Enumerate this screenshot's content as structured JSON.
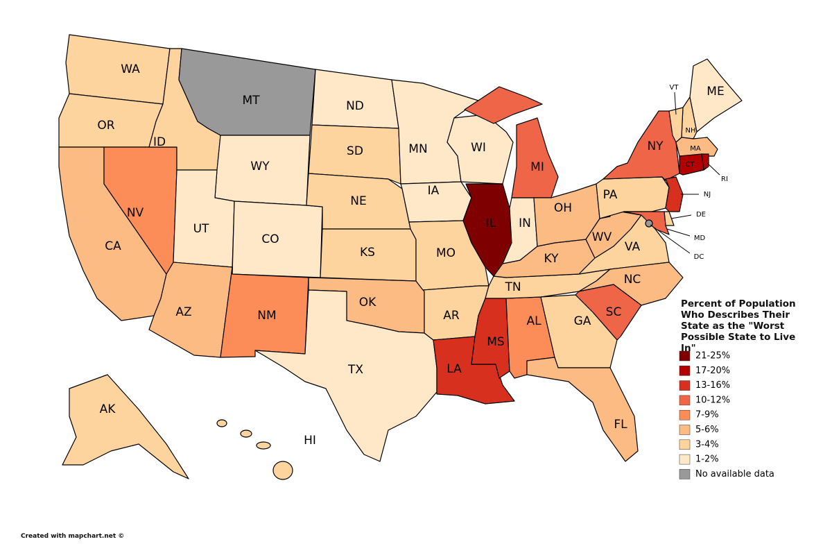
{
  "map": {
    "legend": {
      "title": "Percent of Population Who Describes Their State as the \"Worst Possible State to Live In\"",
      "items": [
        {
          "label": "21-25%",
          "color": "#7f0000"
        },
        {
          "label": "17-20%",
          "color": "#b30000"
        },
        {
          "label": "13-16%",
          "color": "#d7301f"
        },
        {
          "label": "10-12%",
          "color": "#ef6548"
        },
        {
          "label": "7-9%",
          "color": "#fc8d59"
        },
        {
          "label": "5-6%",
          "color": "#fdbb84"
        },
        {
          "label": "3-4%",
          "color": "#fdd49e"
        },
        {
          "label": "1-2%",
          "color": "#fee8c8"
        },
        {
          "label": "No available data",
          "color": "#999999"
        }
      ]
    },
    "states": [
      {
        "label": "WA",
        "bin": 6
      },
      {
        "label": "OR",
        "bin": 6
      },
      {
        "label": "CA",
        "bin": 5
      },
      {
        "label": "NV",
        "bin": 4
      },
      {
        "label": "ID",
        "bin": 6
      },
      {
        "label": "MT",
        "bin": 8
      },
      {
        "label": "WY",
        "bin": 7
      },
      {
        "label": "UT",
        "bin": 7
      },
      {
        "label": "CO",
        "bin": 7
      },
      {
        "label": "AZ",
        "bin": 5
      },
      {
        "label": "NM",
        "bin": 4
      },
      {
        "label": "ND",
        "bin": 7
      },
      {
        "label": "SD",
        "bin": 6
      },
      {
        "label": "NE",
        "bin": 6
      },
      {
        "label": "KS",
        "bin": 6
      },
      {
        "label": "OK",
        "bin": 5
      },
      {
        "label": "TX",
        "bin": 7
      },
      {
        "label": "MN",
        "bin": 7
      },
      {
        "label": "IA",
        "bin": 7
      },
      {
        "label": "MO",
        "bin": 6
      },
      {
        "label": "AR",
        "bin": 6
      },
      {
        "label": "LA",
        "bin": 2
      },
      {
        "label": "WI",
        "bin": 7
      },
      {
        "label": "IL",
        "bin": 0
      },
      {
        "label": "MS",
        "bin": 2
      },
      {
        "label": "AL",
        "bin": 4
      },
      {
        "label": "TN",
        "bin": 6
      },
      {
        "label": "KY",
        "bin": 5
      },
      {
        "label": "IN",
        "bin": 7
      },
      {
        "label": "MI",
        "bin": 3
      },
      {
        "label": "OH",
        "bin": 5
      },
      {
        "label": "WV",
        "bin": 5
      },
      {
        "label": "VA",
        "bin": 6
      },
      {
        "label": "NC",
        "bin": 5
      },
      {
        "label": "SC",
        "bin": 3
      },
      {
        "label": "GA",
        "bin": 6
      },
      {
        "label": "FL",
        "bin": 5
      },
      {
        "label": "PA",
        "bin": 6
      },
      {
        "label": "NY",
        "bin": 3
      },
      {
        "label": "ME",
        "bin": 7
      },
      {
        "label": "NH",
        "bin": 6
      },
      {
        "label": "VT",
        "bin": 6
      },
      {
        "label": "MA",
        "bin": 5
      },
      {
        "label": "CT",
        "bin": 1
      },
      {
        "label": "RI",
        "bin": 1
      },
      {
        "label": "NJ",
        "bin": 2
      },
      {
        "label": "DE",
        "bin": 6
      },
      {
        "label": "MD",
        "bin": 3
      },
      {
        "label": "DC",
        "bin": 8
      },
      {
        "label": "AK",
        "bin": 6
      },
      {
        "label": "HI",
        "bin": 6
      }
    ],
    "credit": "Created with mapchart.net ©"
  }
}
